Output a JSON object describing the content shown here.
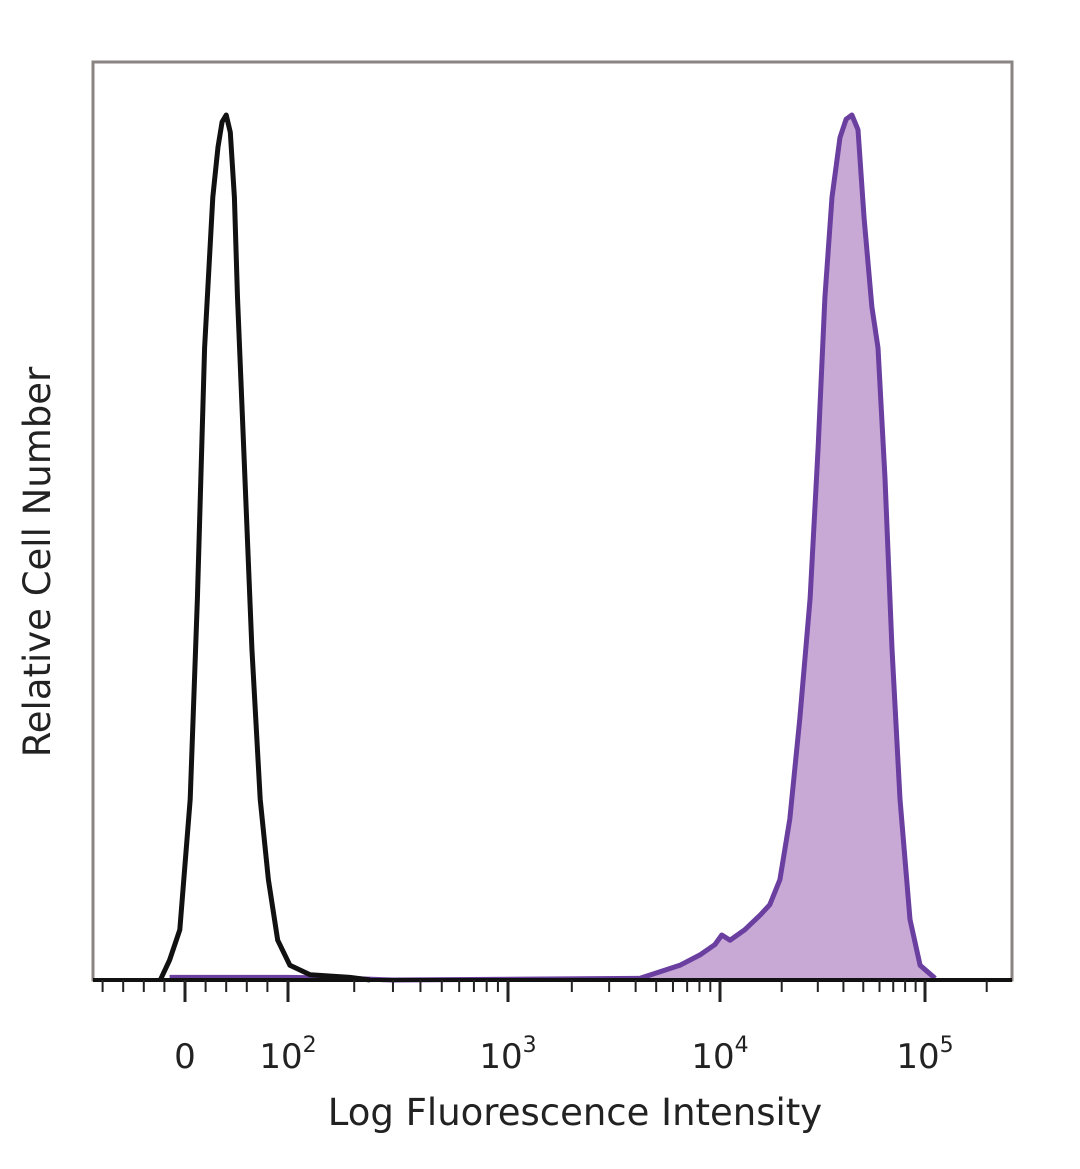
{
  "chart_data": {
    "type": "line",
    "title": "",
    "xlabel": "Log Fluorescence Intensity",
    "ylabel": "Relative Cell Number",
    "x_scale": "biexponential (linear near 0, log above 10^2)",
    "xlim": [
      -90,
      260000
    ],
    "ylim": [
      0,
      100
    ],
    "grid": false,
    "legend": "none",
    "x_ticks": [
      {
        "value": 0,
        "base": "0",
        "exp": ""
      },
      {
        "value": 100,
        "base": "10",
        "exp": "2"
      },
      {
        "value": 1000,
        "base": "10",
        "exp": "3"
      },
      {
        "value": 10000,
        "base": "10",
        "exp": "4"
      },
      {
        "value": 100000,
        "base": "10",
        "exp": "5"
      }
    ],
    "colors": {
      "control": "#111111",
      "stained_line": "#6a3fa0",
      "stained_fill": "#c8a9d6",
      "frame": "#8a8583"
    },
    "series": [
      {
        "style": "black outline (control)",
        "filled": false,
        "points": [
          [
            -24,
            0
          ],
          [
            -15,
            2.3
          ],
          [
            -5,
            5.8
          ],
          [
            5,
            20.9
          ],
          [
            12,
            44.1
          ],
          [
            19,
            73.1
          ],
          [
            27,
            90.5
          ],
          [
            32,
            96.3
          ],
          [
            36,
            99.2
          ],
          [
            40,
            100
          ],
          [
            44,
            98.0
          ],
          [
            48,
            90.5
          ],
          [
            51,
            78.9
          ],
          [
            57,
            61.5
          ],
          [
            65,
            38.3
          ],
          [
            73,
            20.9
          ],
          [
            81,
            11.6
          ],
          [
            90,
            4.6
          ],
          [
            102,
            1.7
          ],
          [
            126,
            0.6
          ],
          [
            191,
            0.3
          ],
          [
            236,
            0
          ]
        ]
      },
      {
        "style": "purple filled (stained)",
        "filled": true,
        "points": [
          [
            -15,
            0.3
          ],
          [
            100,
            0.3
          ],
          [
            180,
            0.2
          ],
          [
            300,
            0
          ],
          [
            4200,
            0.2
          ],
          [
            6470,
            1.7
          ],
          [
            8050,
            2.9
          ],
          [
            9470,
            4.1
          ],
          [
            10200,
            5.2
          ],
          [
            11200,
            4.6
          ],
          [
            13200,
            5.8
          ],
          [
            15700,
            7.5
          ],
          [
            17500,
            8.7
          ],
          [
            19600,
            11.6
          ],
          [
            21900,
            18.6
          ],
          [
            24500,
            30.2
          ],
          [
            27500,
            44.1
          ],
          [
            30100,
            61.5
          ],
          [
            32500,
            78.9
          ],
          [
            35200,
            90.5
          ],
          [
            38500,
            97.4
          ],
          [
            41200,
            99.5
          ],
          [
            44000,
            100
          ],
          [
            47100,
            98.3
          ],
          [
            50400,
            88.2
          ],
          [
            55100,
            77.8
          ],
          [
            59000,
            73.1
          ],
          [
            63800,
            58.0
          ],
          [
            69000,
            38.3
          ],
          [
            75500,
            20.9
          ],
          [
            84500,
            7.0
          ],
          [
            94600,
            1.7
          ],
          [
            112000,
            0.2
          ]
        ]
      }
    ]
  }
}
